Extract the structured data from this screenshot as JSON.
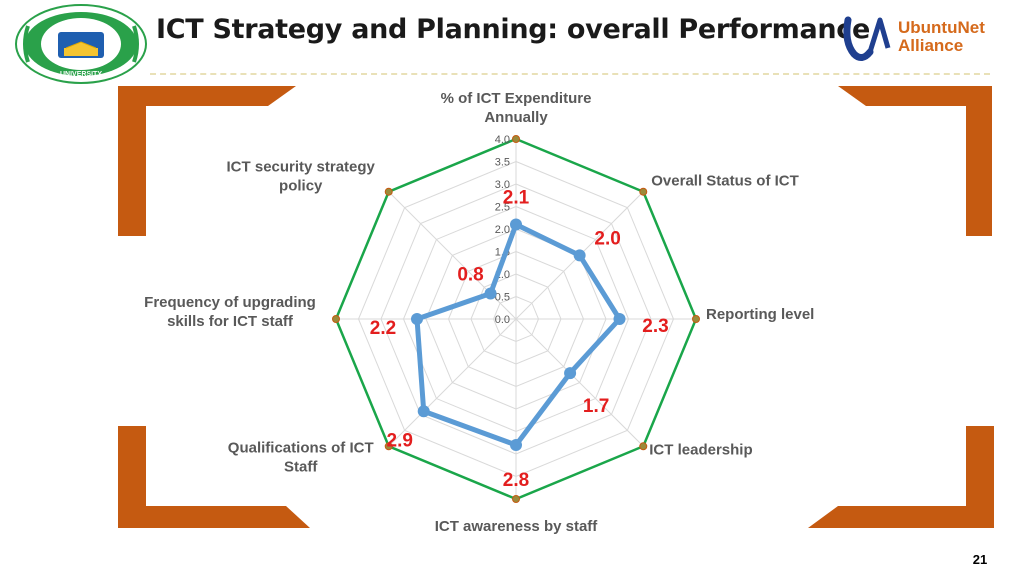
{
  "slide": {
    "title": "ICT Strategy and Planning: overall Performance",
    "page_number": "21"
  },
  "logos": {
    "left": {
      "top_text": "SIMAD",
      "bottom_text": "UNIVERSITY"
    },
    "right": {
      "line1": "UbuntuNet",
      "line2": "Alliance"
    }
  },
  "colors": {
    "accent_orange": "#c55a11",
    "series_line": "#5b9bd5",
    "outer_ring": "#1aa64a",
    "value_label": "#e31e1e",
    "axis_label": "#595959"
  },
  "chart_data": {
    "type": "radar",
    "title": "",
    "axes": [
      {
        "label": "% of ICT Expenditure Annually",
        "value": 2.1,
        "value_label": "2.1"
      },
      {
        "label": "Overall Status of ICT",
        "value": 2.0,
        "value_label": "2.0"
      },
      {
        "label": "Reporting level",
        "value": 2.3,
        "value_label": "2.3"
      },
      {
        "label": "ICT leadership",
        "value": 1.7,
        "value_label": "1.7"
      },
      {
        "label": "ICT awareness by staff",
        "value": 2.8,
        "value_label": "2.8"
      },
      {
        "label": "Qualifications of ICT Staff",
        "value": 2.9,
        "value_label": "2.9"
      },
      {
        "label": "Frequency of upgrading skills for ICT staff",
        "value": 2.2,
        "value_label": "2.2"
      },
      {
        "label": "ICT security strategy policy",
        "value": 0.8,
        "value_label": "0.8"
      }
    ],
    "rlim": [
      0,
      4.0
    ],
    "ticks": [
      "0.0",
      "0.5",
      "1.0",
      "1.5",
      "2.0",
      "2.5",
      "3.0",
      "3.5",
      "4.0"
    ],
    "grid": true,
    "legend": "none"
  }
}
